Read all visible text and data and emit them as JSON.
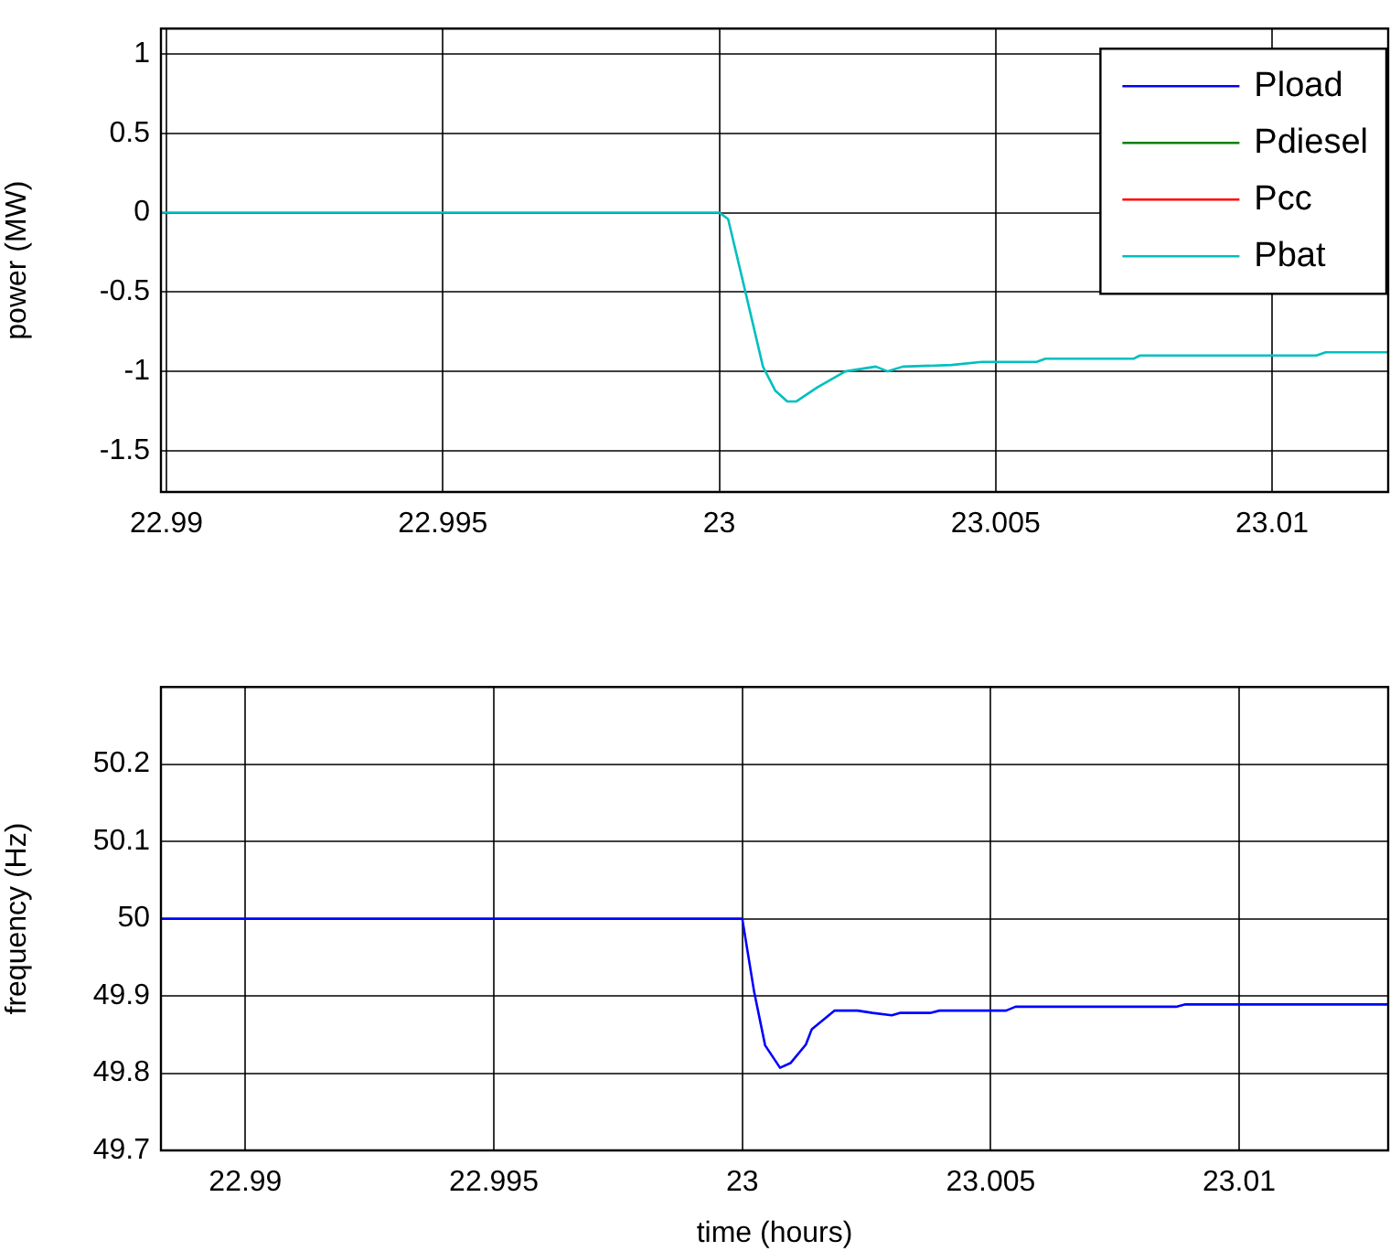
{
  "chart_data": [
    {
      "type": "line",
      "ylabel": "power (MW)",
      "xlim": [
        22.9899,
        23.0121
      ],
      "ylim": [
        -1.76,
        1.16
      ],
      "xticks": [
        22.99,
        22.995,
        23,
        23.005,
        23.01
      ],
      "yticks": [
        -1.5,
        -1,
        -0.5,
        0,
        0.5,
        1
      ],
      "grid": true,
      "legend": "top right",
      "x": [
        22.9899,
        23,
        23.00016,
        23.00046,
        23.00079,
        23.00101,
        23.00123,
        23.00139,
        23.00178,
        23.00228,
        23.00283,
        23.00305,
        23.00332,
        23.0042,
        23.00475,
        23.00574,
        23.0059,
        23.0075,
        23.00761,
        23.0108,
        23.01097,
        23.0121
      ],
      "series": [
        {
          "name": "Pload",
          "color": "#0000ff",
          "values": [
            null,
            null,
            null,
            null,
            null,
            null,
            null,
            null,
            null,
            null,
            null,
            null,
            null,
            null,
            null,
            null,
            null,
            null,
            null,
            null,
            null,
            null
          ]
        },
        {
          "name": "Pdiesel",
          "color": "#008000",
          "values": [
            null,
            null,
            null,
            null,
            null,
            null,
            null,
            null,
            null,
            null,
            null,
            null,
            null,
            null,
            null,
            null,
            null,
            null,
            null,
            null,
            null,
            null
          ]
        },
        {
          "name": "Pcc",
          "color": "#ff0000",
          "values": [
            null,
            null,
            null,
            null,
            null,
            null,
            null,
            null,
            null,
            null,
            null,
            null,
            null,
            null,
            null,
            null,
            null,
            null,
            null,
            null,
            null,
            null
          ]
        },
        {
          "name": "Pbat",
          "color": "#00bfbf",
          "values": [
            0,
            0,
            -0.04,
            -0.48,
            -0.97,
            -1.12,
            -1.19,
            -1.19,
            -1.1,
            -1.0,
            -0.97,
            -1.0,
            -0.97,
            -0.96,
            -0.94,
            -0.94,
            -0.92,
            -0.92,
            -0.9,
            -0.9,
            -0.88,
            -0.88
          ]
        }
      ]
    },
    {
      "type": "line",
      "xlabel": "time (hours)",
      "ylabel": "frequency (Hz)",
      "xlim": [
        22.9883,
        23.013
      ],
      "ylim": [
        49.7,
        50.3
      ],
      "xticks": [
        22.99,
        22.995,
        23,
        23.005,
        23.01
      ],
      "yticks": [
        49.7,
        49.8,
        49.9,
        50,
        50.1,
        50.2
      ],
      "grid": true,
      "x": [
        22.9883,
        23,
        23.00024,
        23.00046,
        23.00076,
        23.00097,
        23.00128,
        23.0014,
        23.00186,
        23.00232,
        23.00262,
        23.00301,
        23.00317,
        23.00378,
        23.00397,
        23.00531,
        23.0055,
        23.00873,
        23.00892,
        23.013
      ],
      "series": [
        {
          "color": "#0000ff",
          "values": [
            50,
            50,
            49.905,
            49.836,
            49.807,
            49.813,
            49.837,
            49.857,
            49.881,
            49.881,
            49.878,
            49.875,
            49.878,
            49.878,
            49.881,
            49.881,
            49.886,
            49.886,
            49.889,
            49.889
          ]
        }
      ]
    }
  ]
}
